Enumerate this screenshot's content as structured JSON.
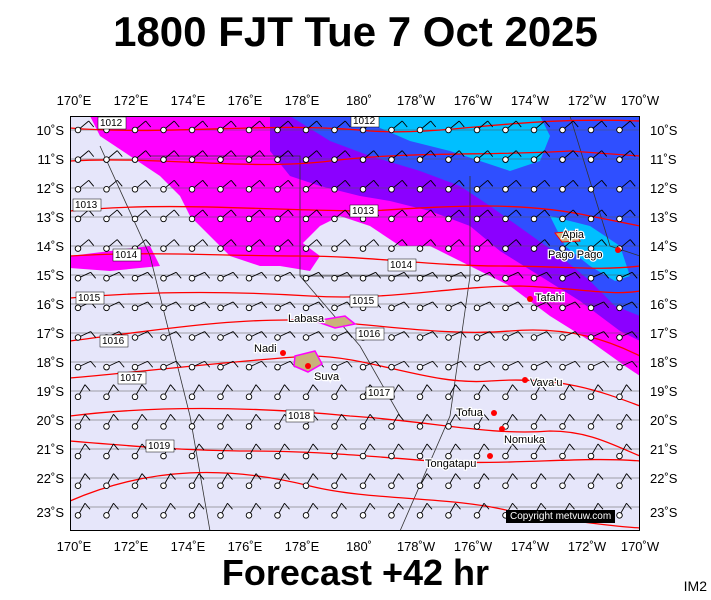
{
  "title": "1800 FJT Tue 7 Oct 2025",
  "subtitle": "Forecast +42 hr",
  "corner_label": "IM2",
  "copyright": "Copyright metvuw.com",
  "lon_labels": [
    "170˚E",
    "172˚E",
    "174˚E",
    "176˚E",
    "178˚E",
    "180˚",
    "178˚W",
    "176˚W",
    "174˚W",
    "172˚W",
    "170˚W"
  ],
  "lat_labels": [
    "10˚S",
    "11˚S",
    "12˚S",
    "13˚S",
    "14˚S",
    "15˚S",
    "16˚S",
    "17˚S",
    "18˚S",
    "19˚S",
    "20˚S",
    "21˚S",
    "22˚S",
    "23˚S"
  ],
  "isobars": [
    "1012",
    "1012",
    "1013",
    "1013",
    "1014",
    "1014",
    "1015",
    "1015",
    "1016",
    "1016",
    "1017",
    "1017",
    "1018",
    "1019"
  ],
  "places": [
    "Apia",
    "Pago Pago",
    "Tafahi",
    "Labasa",
    "Nadi",
    "Suva",
    "Vava'u",
    "Tofua",
    "Nomuka",
    "Tongatapu"
  ],
  "colors": {
    "ocean": "#e6e6fa",
    "rain_magenta": "#ff00ff",
    "rain_purple": "#8b00ff",
    "rain_blue": "#2f4fff",
    "rain_cyan": "#00bfff",
    "isobar": "#ff0000"
  }
}
